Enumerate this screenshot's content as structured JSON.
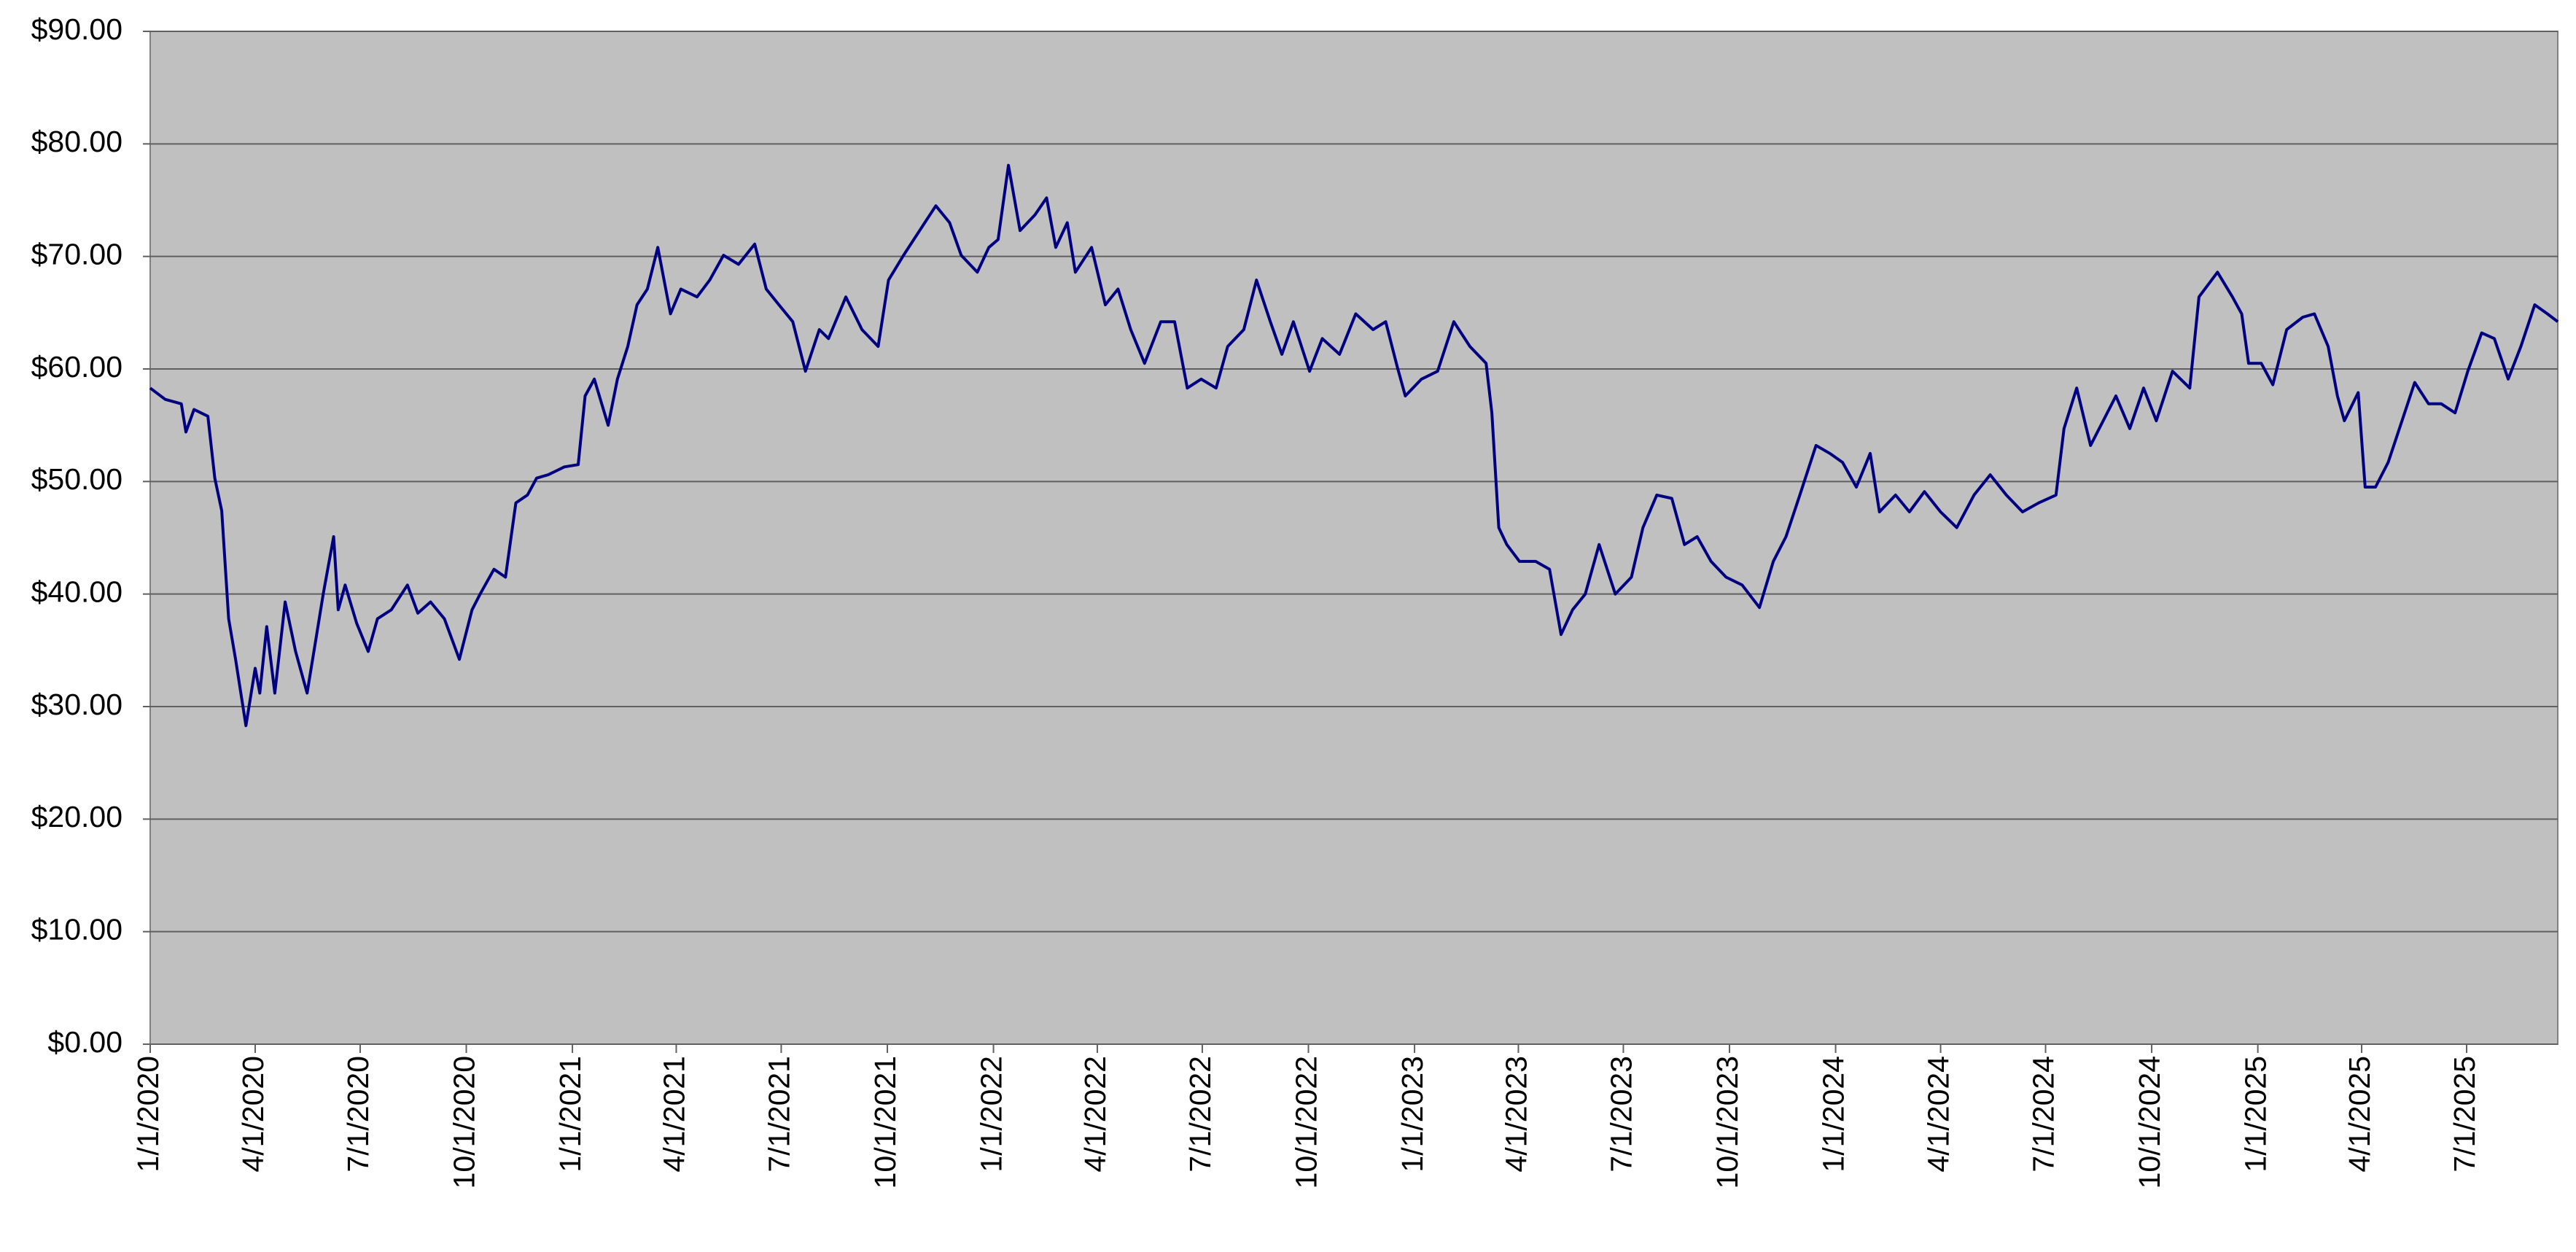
{
  "chart_data": {
    "type": "line",
    "color": "#000080",
    "grid": true,
    "ylim": [
      0,
      90
    ],
    "yticks": [
      {
        "value": 0,
        "label": "$0.00"
      },
      {
        "value": 10,
        "label": "$10.00"
      },
      {
        "value": 20,
        "label": "$20.00"
      },
      {
        "value": 30,
        "label": "$30.00"
      },
      {
        "value": 40,
        "label": "$40.00"
      },
      {
        "value": 50,
        "label": "$50.00"
      },
      {
        "value": 60,
        "label": "$60.00"
      },
      {
        "value": 70,
        "label": "$70.00"
      },
      {
        "value": 80,
        "label": "$80.00"
      },
      {
        "value": 90,
        "label": "$90.00"
      }
    ],
    "xlim": [
      "2020-01-01",
      "2025-09-18"
    ],
    "xticks": [
      {
        "value": "2020-01-01",
        "label": "1/1/2020"
      },
      {
        "value": "2020-04-01",
        "label": "4/1/2020"
      },
      {
        "value": "2020-07-01",
        "label": "7/1/2020"
      },
      {
        "value": "2020-10-01",
        "label": "10/1/2020"
      },
      {
        "value": "2021-01-01",
        "label": "1/1/2021"
      },
      {
        "value": "2021-04-01",
        "label": "4/1/2021"
      },
      {
        "value": "2021-07-01",
        "label": "7/1/2021"
      },
      {
        "value": "2021-10-01",
        "label": "10/1/2021"
      },
      {
        "value": "2022-01-01",
        "label": "1/1/2022"
      },
      {
        "value": "2022-04-01",
        "label": "4/1/2022"
      },
      {
        "value": "2022-07-01",
        "label": "7/1/2022"
      },
      {
        "value": "2022-10-01",
        "label": "10/1/2022"
      },
      {
        "value": "2023-01-01",
        "label": "1/1/2023"
      },
      {
        "value": "2023-04-01",
        "label": "4/1/2023"
      },
      {
        "value": "2023-07-01",
        "label": "7/1/2023"
      },
      {
        "value": "2023-10-01",
        "label": "10/1/2023"
      },
      {
        "value": "2024-01-01",
        "label": "1/1/2024"
      },
      {
        "value": "2024-04-01",
        "label": "4/1/2024"
      },
      {
        "value": "2024-07-01",
        "label": "7/1/2024"
      },
      {
        "value": "2024-10-01",
        "label": "10/1/2024"
      },
      {
        "value": "2025-01-01",
        "label": "1/1/2025"
      },
      {
        "value": "2025-04-01",
        "label": "4/1/2025"
      },
      {
        "value": "2025-07-01",
        "label": "7/1/2025"
      }
    ],
    "x": [
      "2020-01-01",
      "2020-01-14",
      "2020-01-28",
      "2020-02-01",
      "2020-02-08",
      "2020-02-20",
      "2020-02-26",
      "2020-03-03",
      "2020-03-09",
      "2020-03-15",
      "2020-03-24",
      "2020-04-01",
      "2020-04-05",
      "2020-04-11",
      "2020-04-18",
      "2020-04-27",
      "2020-05-06",
      "2020-05-16",
      "2020-05-23",
      "2020-05-30",
      "2020-06-08",
      "2020-06-12",
      "2020-06-18",
      "2020-06-28",
      "2020-07-08",
      "2020-07-16",
      "2020-07-28",
      "2020-08-11",
      "2020-08-20",
      "2020-08-31",
      "2020-09-12",
      "2020-09-25",
      "2020-10-06",
      "2020-10-13",
      "2020-10-25",
      "2020-11-04",
      "2020-11-13",
      "2020-11-23",
      "2020-12-01",
      "2020-12-11",
      "2020-12-25",
      "2021-01-06",
      "2021-01-12",
      "2021-01-20",
      "2021-02-01",
      "2021-02-09",
      "2021-02-18",
      "2021-02-26",
      "2021-03-07",
      "2021-03-16",
      "2021-03-27",
      "2021-04-05",
      "2021-04-19",
      "2021-04-30",
      "2021-05-12",
      "2021-05-25",
      "2021-06-08",
      "2021-06-18",
      "2021-06-29",
      "2021-07-11",
      "2021-07-22",
      "2021-08-03",
      "2021-08-11",
      "2021-08-26",
      "2021-09-09",
      "2021-09-23",
      "2021-10-02",
      "2021-10-15",
      "2021-10-29",
      "2021-11-12",
      "2021-11-24",
      "2021-12-04",
      "2021-12-18",
      "2021-12-28",
      "2022-01-05",
      "2022-01-14",
      "2022-01-24",
      "2022-02-06",
      "2022-02-16",
      "2022-02-24",
      "2022-03-06",
      "2022-03-13",
      "2022-03-27",
      "2022-04-08",
      "2022-04-19",
      "2022-04-30",
      "2022-05-12",
      "2022-05-26",
      "2022-06-07",
      "2022-06-18",
      "2022-06-30",
      "2022-07-13",
      "2022-07-23",
      "2022-08-06",
      "2022-08-17",
      "2022-08-29",
      "2022-09-08",
      "2022-09-18",
      "2022-10-02",
      "2022-10-13",
      "2022-10-28",
      "2022-11-11",
      "2022-11-26",
      "2022-12-07",
      "2022-12-17",
      "2022-12-24",
      "2023-01-07",
      "2023-01-21",
      "2023-02-04",
      "2023-02-18",
      "2023-03-04",
      "2023-03-09",
      "2023-03-15",
      "2023-03-22",
      "2023-04-02",
      "2023-04-16",
      "2023-04-28",
      "2023-05-08",
      "2023-05-18",
      "2023-05-29",
      "2023-06-10",
      "2023-06-24",
      "2023-07-08",
      "2023-07-18",
      "2023-07-30",
      "2023-08-12",
      "2023-08-23",
      "2023-09-03",
      "2023-09-15",
      "2023-09-28",
      "2023-10-12",
      "2023-10-27",
      "2023-11-08",
      "2023-11-19",
      "2023-12-01",
      "2023-12-15",
      "2023-12-27",
      "2024-01-07",
      "2024-01-19",
      "2024-01-31",
      "2024-02-08",
      "2024-02-22",
      "2024-03-05",
      "2024-03-18",
      "2024-04-01",
      "2024-04-15",
      "2024-04-30",
      "2024-05-14",
      "2024-05-28",
      "2024-06-11",
      "2024-06-25",
      "2024-07-10",
      "2024-07-17",
      "2024-07-28",
      "2024-08-09",
      "2024-08-20",
      "2024-08-31",
      "2024-09-12",
      "2024-09-24",
      "2024-10-05",
      "2024-10-19",
      "2024-11-03",
      "2024-11-11",
      "2024-11-27",
      "2024-12-10",
      "2024-12-18",
      "2024-12-24",
      "2025-01-04",
      "2025-01-14",
      "2025-01-26",
      "2025-02-09",
      "2025-02-19",
      "2025-03-03",
      "2025-03-11",
      "2025-03-17",
      "2025-03-29",
      "2025-04-04",
      "2025-04-13",
      "2025-04-24",
      "2025-05-06",
      "2025-05-17",
      "2025-05-29",
      "2025-06-09",
      "2025-06-21",
      "2025-07-02",
      "2025-07-14",
      "2025-07-25",
      "2025-08-06",
      "2025-08-17",
      "2025-08-29",
      "2025-09-09",
      "2025-09-18"
    ],
    "values": [
      58.3,
      57.3,
      56.9,
      54.4,
      56.4,
      55.8,
      50.3,
      47.4,
      37.8,
      34.2,
      28.3,
      33.4,
      31.2,
      37.1,
      31.2,
      39.3,
      34.9,
      31.2,
      35.6,
      40,
      45.1,
      38.6,
      40.8,
      37.4,
      34.9,
      37.8,
      38.6,
      40.8,
      38.3,
      39.3,
      37.8,
      34.2,
      38.6,
      40,
      42.2,
      41.5,
      48.1,
      48.8,
      50.3,
      50.6,
      51.3,
      51.5,
      57.6,
      59.1,
      55,
      59.1,
      62,
      65.7,
      67.1,
      70.8,
      64.9,
      67.1,
      66.4,
      67.9,
      70.1,
      69.3,
      71.1,
      67.1,
      65.7,
      64.2,
      59.8,
      63.5,
      62.7,
      66.4,
      63.5,
      62,
      67.9,
      70.1,
      72.3,
      74.5,
      73,
      70.1,
      68.6,
      70.8,
      71.5,
      78.1,
      72.3,
      73.7,
      75.2,
      70.8,
      73,
      68.6,
      70.8,
      65.7,
      67.1,
      63.5,
      60.5,
      64.2,
      64.2,
      58.3,
      59.1,
      58.3,
      62,
      63.5,
      67.9,
      64.2,
      61.3,
      64.2,
      59.8,
      62.7,
      61.3,
      64.9,
      63.5,
      64.2,
      60.2,
      57.6,
      59.1,
      59.8,
      64.2,
      62,
      60.5,
      56.1,
      45.9,
      44.4,
      42.9,
      42.9,
      42.2,
      36.4,
      38.6,
      40,
      44.4,
      40,
      41.5,
      45.9,
      48.8,
      48.5,
      44.4,
      45.1,
      42.9,
      41.5,
      40.8,
      38.8,
      42.9,
      45.1,
      48.8,
      53.2,
      52.5,
      51.7,
      49.5,
      52.5,
      47.3,
      48.8,
      47.3,
      49.1,
      47.3,
      45.9,
      48.8,
      50.6,
      48.8,
      47.3,
      48.1,
      48.8,
      54.7,
      58.3,
      53.2,
      55.4,
      57.6,
      54.7,
      58.3,
      55.4,
      59.8,
      58.3,
      66.4,
      68.6,
      66.4,
      64.9,
      60.5,
      60.5,
      58.6,
      63.5,
      64.6,
      64.9,
      62,
      57.6,
      55.4,
      57.9,
      49.5,
      49.5,
      51.7,
      55.4,
      58.8,
      56.9,
      56.9,
      56.1,
      59.8,
      63.2,
      62.7,
      59.1,
      62,
      65.7,
      64.9,
      64.2
    ]
  }
}
